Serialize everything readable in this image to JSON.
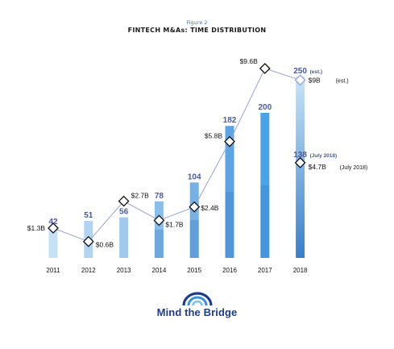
{
  "figure": {
    "label": "Figure 2",
    "title": "FINTECH M&As: TIME DISTRIBUTION"
  },
  "logo": {
    "text": "Mind the Bridge",
    "color": "#1f3c88"
  },
  "colors": {
    "bar_light": "#c4def3",
    "bar_mid": "#6fa8dc",
    "bar_dark": "#3a78c2",
    "bar_2017_top": "#4ca9e8",
    "line": "#9aa3cf",
    "count_label": "#4a5a9a",
    "marker_fill": "#ffffff",
    "marker_stroke": "#111111"
  },
  "chart_data": {
    "type": "bar",
    "categories": [
      "2011",
      "2012",
      "2013",
      "2014",
      "2015",
      "2016",
      "2017",
      "2018"
    ],
    "series": [
      {
        "values": [
          42,
          51,
          56,
          78,
          104,
          182,
          200,
          250
        ]
      },
      {
        "values": [
          1.3,
          0.6,
          2.7,
          1.7,
          2.4,
          5.8,
          9.6,
          9
        ]
      }
    ],
    "partial_2018": {
      "count": 138,
      "value": 4.7
    },
    "count_labels": [
      "42",
      "51",
      "56",
      "78",
      "104",
      "182",
      "200",
      "250"
    ],
    "count_label_2018_suffix": "(est.)",
    "partial_count_label": "138",
    "partial_count_suffix": "(July 2018)",
    "value_labels": [
      "$1.3B",
      "$0.6B",
      "$2.7B",
      "$1.7B",
      "$2.4B",
      "$5.8B",
      "$9.6B",
      "$9B"
    ],
    "value_label_2018_suffix": "(est.)",
    "partial_value_label": "$4.7B",
    "partial_value_suffix": "(July 2018)",
    "ylim_count": [
      0,
      250
    ],
    "ylim_value": [
      0,
      9.6
    ],
    "grid": false
  }
}
